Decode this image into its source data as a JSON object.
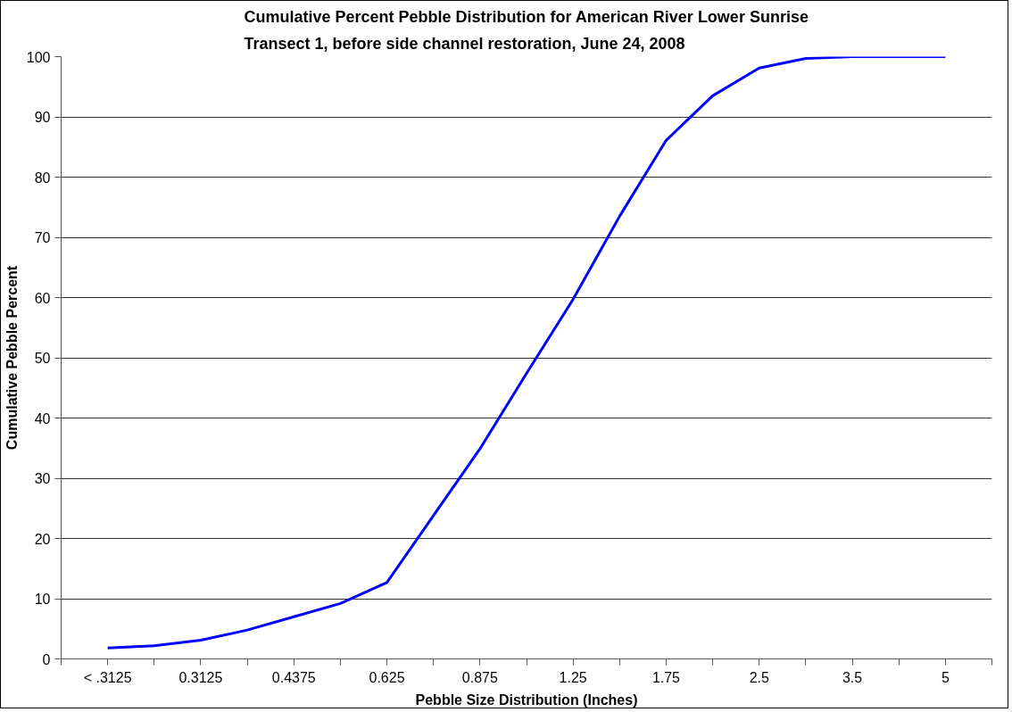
{
  "chart_data": {
    "type": "line",
    "title": "Cumulative Percent Pebble Distribution for American River Lower Sunrise\nTransect 1,  before side channel restoration, June 24, 2008",
    "xlabel": "Pebble Size Distribution (Inches)",
    "ylabel": "Cumulative Pebble Percent",
    "categories": [
      "< .3125",
      null,
      "0.3125",
      null,
      "0.4375",
      null,
      "0.625",
      null,
      "0.875",
      null,
      "1.25",
      null,
      "1.75",
      null,
      "2.5",
      null,
      "3.5",
      null,
      "5"
    ],
    "series": [
      {
        "color": "#0000ff",
        "values": [
          1.8,
          2.2,
          3.1,
          4.8,
          7.0,
          9.2,
          12.7,
          23.8,
          34.9,
          47.4,
          59.7,
          73.5,
          86.1,
          93.5,
          98.1,
          99.7,
          100,
          100,
          100
        ]
      }
    ],
    "ylim": [
      0,
      100
    ],
    "yticks": [
      0,
      10,
      20,
      30,
      40,
      50,
      60,
      70,
      80,
      90,
      100
    ],
    "grid": "y",
    "marker": "none",
    "line_style": "solid"
  }
}
